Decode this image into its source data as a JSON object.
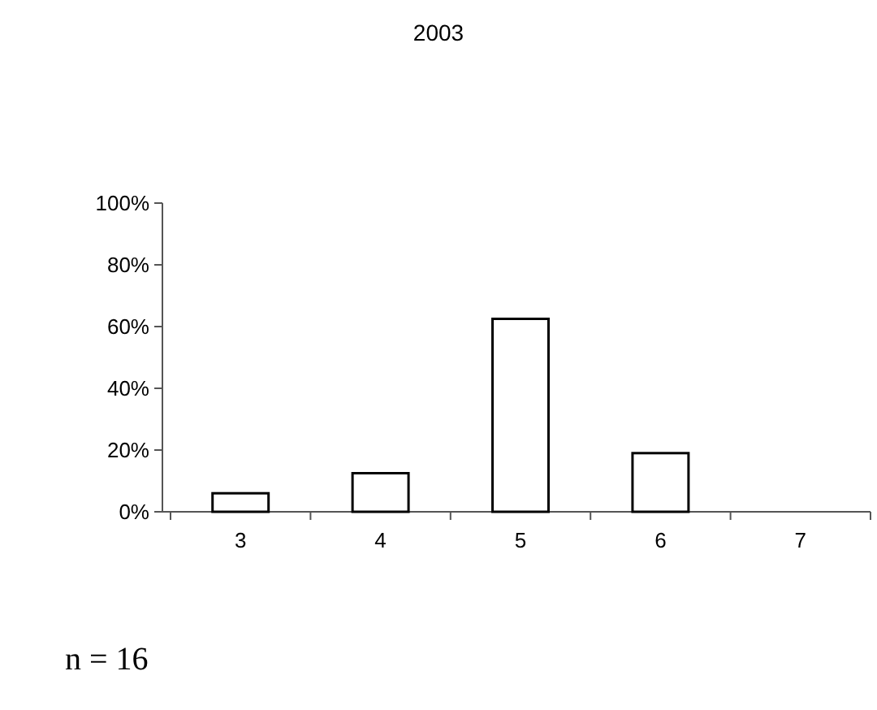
{
  "chart_data": {
    "type": "bar",
    "title": "2003",
    "categories": [
      "3",
      "4",
      "5",
      "6",
      "7"
    ],
    "values": [
      6,
      12.5,
      62.5,
      19,
      0
    ],
    "color": "#ffffff",
    "ylim": [
      0,
      100
    ],
    "yticks": [
      {
        "value": 0,
        "label": "0%"
      },
      {
        "value": 20,
        "label": "20%"
      },
      {
        "value": 40,
        "label": "40%"
      },
      {
        "value": 60,
        "label": "60%"
      },
      {
        "value": 80,
        "label": "80%"
      },
      {
        "value": 100,
        "label": "100%"
      }
    ],
    "grid": false,
    "annotations": [
      "n = 16"
    ]
  }
}
